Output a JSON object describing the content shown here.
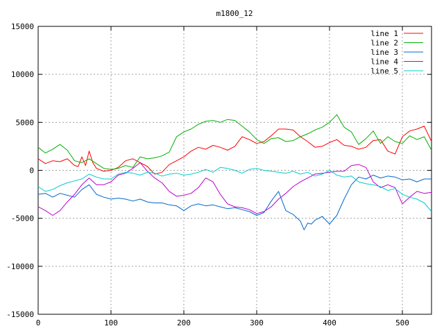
{
  "chart_data": {
    "type": "line",
    "title": "m1800_12",
    "xlim": [
      0,
      540
    ],
    "ylim": [
      -15000,
      15000
    ],
    "x_ticks": [
      0,
      100,
      200,
      300,
      400,
      500
    ],
    "y_ticks": [
      -15000,
      -10000,
      -5000,
      0,
      5000,
      10000,
      15000
    ],
    "grid": true,
    "legend_position": "top-right",
    "series": [
      {
        "name": "line 1",
        "color": "#ff0000",
        "x": [
          0,
          10,
          20,
          30,
          40,
          50,
          55,
          60,
          65,
          70,
          75,
          80,
          90,
          100,
          110,
          120,
          130,
          140,
          150,
          160,
          170,
          180,
          190,
          200,
          210,
          220,
          230,
          240,
          250,
          260,
          270,
          280,
          290,
          300,
          310,
          320,
          330,
          340,
          350,
          360,
          370,
          380,
          390,
          400,
          410,
          420,
          430,
          440,
          450,
          460,
          470,
          480,
          490,
          500,
          510,
          520,
          530,
          540
        ],
        "y": [
          1200,
          700,
          1000,
          900,
          1200,
          500,
          400,
          1400,
          500,
          2000,
          800,
          200,
          -100,
          0,
          300,
          1000,
          1200,
          800,
          400,
          -400,
          -200,
          600,
          1000,
          1400,
          2000,
          2400,
          2200,
          2600,
          2400,
          2100,
          2500,
          3500,
          3200,
          2800,
          3000,
          3600,
          4300,
          4300,
          4200,
          3500,
          3000,
          2400,
          2500,
          2900,
          3200,
          2600,
          2500,
          2200,
          2400,
          3100,
          3200,
          2000,
          1700,
          3500,
          4100,
          4300,
          4600,
          3000
        ]
      },
      {
        "name": "line 2",
        "color": "#00b000",
        "x": [
          0,
          10,
          20,
          30,
          40,
          50,
          60,
          70,
          80,
          90,
          100,
          110,
          120,
          130,
          140,
          150,
          160,
          170,
          180,
          190,
          200,
          210,
          220,
          230,
          240,
          250,
          260,
          270,
          280,
          290,
          300,
          310,
          320,
          330,
          340,
          350,
          360,
          370,
          380,
          390,
          400,
          410,
          420,
          430,
          440,
          450,
          460,
          470,
          480,
          490,
          500,
          510,
          520,
          530,
          540
        ],
        "y": [
          2400,
          1800,
          2200,
          2700,
          2100,
          1000,
          800,
          1200,
          700,
          200,
          100,
          200,
          500,
          300,
          1400,
          1200,
          1300,
          1500,
          1900,
          3500,
          4000,
          4300,
          4800,
          5100,
          5200,
          5000,
          5300,
          5200,
          4600,
          4000,
          3200,
          2800,
          3300,
          3400,
          3000,
          3100,
          3500,
          3800,
          4200,
          4500,
          5000,
          5800,
          4500,
          4000,
          2700,
          3300,
          4100,
          2800,
          3500,
          3000,
          2800,
          3600,
          3200,
          3500,
          2100
        ]
      },
      {
        "name": "line 3",
        "color": "#0066cc",
        "x": [
          0,
          10,
          20,
          30,
          40,
          50,
          60,
          70,
          80,
          90,
          100,
          110,
          120,
          130,
          140,
          150,
          160,
          170,
          180,
          190,
          200,
          210,
          220,
          230,
          240,
          250,
          260,
          270,
          280,
          290,
          300,
          310,
          320,
          330,
          340,
          350,
          360,
          365,
          370,
          375,
          380,
          390,
          400,
          410,
          420,
          430,
          440,
          450,
          460,
          470,
          480,
          490,
          500,
          510,
          520,
          530,
          540
        ],
        "y": [
          -2500,
          -2400,
          -2800,
          -2400,
          -2600,
          -2800,
          -2000,
          -1500,
          -2500,
          -2800,
          -3000,
          -2900,
          -3000,
          -3200,
          -3000,
          -3300,
          -3400,
          -3400,
          -3600,
          -3700,
          -4200,
          -3700,
          -3500,
          -3700,
          -3600,
          -3800,
          -4000,
          -3900,
          -4100,
          -4300,
          -4700,
          -4400,
          -3200,
          -2200,
          -4200,
          -4600,
          -5300,
          -6200,
          -5500,
          -5600,
          -5200,
          -4800,
          -5600,
          -4700,
          -3000,
          -1500,
          -700,
          -900,
          -500,
          -800,
          -600,
          -700,
          -1000,
          -900,
          -1200,
          -900,
          -900
        ]
      },
      {
        "name": "line 4",
        "color": "#bb00cc",
        "x": [
          0,
          10,
          20,
          30,
          40,
          50,
          60,
          70,
          80,
          90,
          100,
          110,
          120,
          130,
          140,
          150,
          160,
          170,
          180,
          190,
          200,
          210,
          220,
          230,
          240,
          250,
          260,
          270,
          280,
          290,
          300,
          310,
          320,
          330,
          340,
          350,
          360,
          370,
          380,
          390,
          400,
          410,
          420,
          430,
          440,
          450,
          460,
          470,
          480,
          490,
          500,
          510,
          520,
          530,
          540
        ],
        "y": [
          -3800,
          -4200,
          -4700,
          -4200,
          -3300,
          -2500,
          -1500,
          -800,
          -1500,
          -1500,
          -1200,
          -500,
          -300,
          200,
          800,
          -100,
          -800,
          -1300,
          -2200,
          -2700,
          -2600,
          -2400,
          -1800,
          -800,
          -1200,
          -2500,
          -3500,
          -3800,
          -3900,
          -4100,
          -4500,
          -4300,
          -3800,
          -3000,
          -2400,
          -1700,
          -1200,
          -800,
          -400,
          -300,
          -200,
          -100,
          -100,
          500,
          600,
          300,
          -1200,
          -1800,
          -1500,
          -1800,
          -3500,
          -2800,
          -2200,
          -2400,
          -2300
        ]
      },
      {
        "name": "line 5",
        "color": "#00cccc",
        "x": [
          0,
          10,
          20,
          30,
          40,
          50,
          60,
          70,
          80,
          90,
          100,
          110,
          120,
          130,
          140,
          150,
          160,
          170,
          180,
          190,
          200,
          210,
          220,
          230,
          240,
          250,
          260,
          270,
          280,
          290,
          300,
          310,
          320,
          330,
          340,
          350,
          360,
          370,
          380,
          390,
          400,
          410,
          420,
          430,
          440,
          450,
          460,
          470,
          480,
          490,
          500,
          510,
          520,
          530,
          540
        ],
        "y": [
          -1700,
          -2200,
          -2000,
          -1600,
          -1300,
          -1100,
          -900,
          -400,
          -700,
          -900,
          -900,
          -400,
          -200,
          -300,
          -500,
          -200,
          -300,
          -600,
          -400,
          -300,
          -500,
          -400,
          -200,
          100,
          -200,
          300,
          200,
          0,
          -300,
          100,
          200,
          0,
          -100,
          -200,
          -300,
          -100,
          -400,
          -200,
          -600,
          -400,
          0,
          -500,
          -700,
          -600,
          -1200,
          -1400,
          -1500,
          -1700,
          -2100,
          -1900,
          -2500,
          -2800,
          -3000,
          -3400,
          -4300
        ]
      }
    ]
  }
}
